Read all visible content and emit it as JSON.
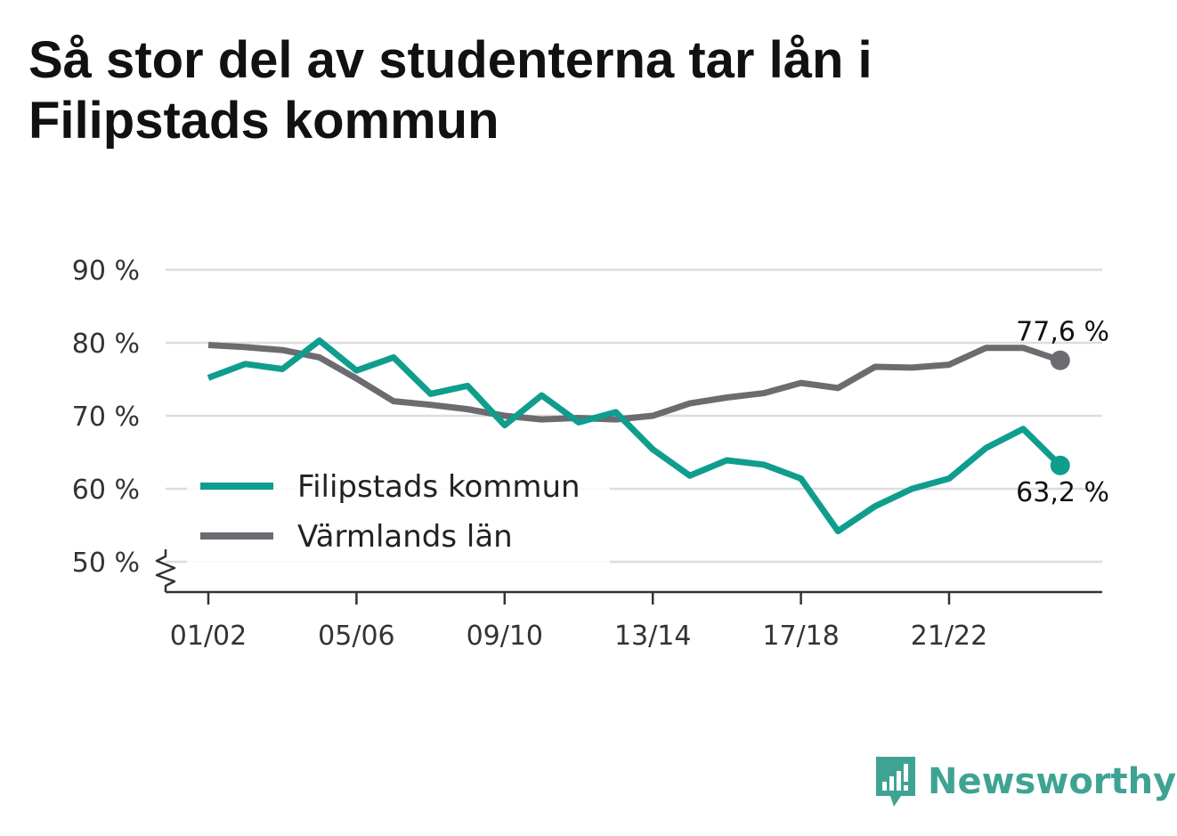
{
  "title": "Så stor del av studenterna tar lån i Filipstads kommun",
  "brand": {
    "name": "Newsworthy",
    "icon": "bar-chart-speech-bubble-icon",
    "color": "#3fa394"
  },
  "chart_data": {
    "type": "line",
    "title": "Så stor del av studenterna tar lån i Filipstads kommun",
    "x": [
      "01/02",
      "02/03",
      "03/04",
      "04/05",
      "05/06",
      "06/07",
      "07/08",
      "08/09",
      "09/10",
      "10/11",
      "11/12",
      "12/13",
      "13/14",
      "14/15",
      "15/16",
      "16/17",
      "17/18",
      "18/19",
      "19/20",
      "20/21",
      "21/22",
      "22/23",
      "23/24",
      "24/25"
    ],
    "x_tick_labels": [
      "01/02",
      "05/06",
      "09/10",
      "13/14",
      "17/18",
      "21/22"
    ],
    "y_tick_labels": [
      "50 %",
      "60 %",
      "70 %",
      "80 %",
      "90 %"
    ],
    "y_ticks": [
      50,
      60,
      70,
      80,
      90
    ],
    "ylim": [
      46,
      90
    ],
    "y_axis_break": true,
    "grid": true,
    "legend_position": "left-center",
    "series": [
      {
        "name": "Filipstads kommun",
        "color": "#0f9d8e",
        "values": [
          75.2,
          77.1,
          76.4,
          80.3,
          76.2,
          78.0,
          73.0,
          74.1,
          68.7,
          72.8,
          69.1,
          70.5,
          65.4,
          61.8,
          63.9,
          63.3,
          61.4,
          54.2,
          57.6,
          60.0,
          61.4,
          65.6,
          68.2,
          63.2
        ],
        "end_label": "63,2 %"
      },
      {
        "name": "Värmlands län",
        "color": "#6d6b70",
        "values": [
          79.7,
          79.4,
          79.0,
          78.0,
          75.1,
          72.0,
          71.5,
          70.9,
          70.0,
          69.5,
          69.7,
          69.5,
          70.0,
          71.7,
          72.5,
          73.1,
          74.5,
          73.8,
          76.7,
          76.6,
          77.0,
          79.3,
          79.3,
          77.6
        ],
        "end_label": "77,6 %"
      }
    ]
  }
}
